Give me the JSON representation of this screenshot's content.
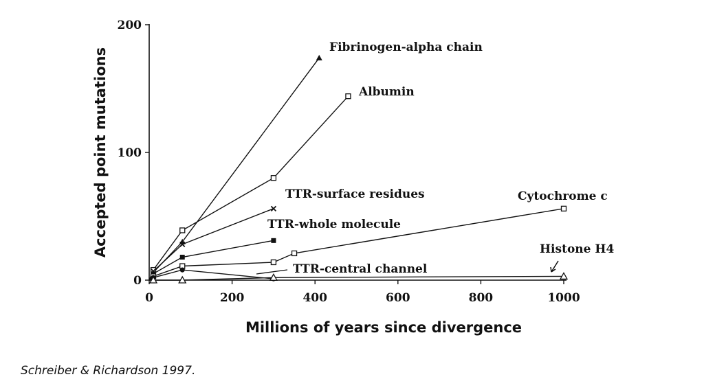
{
  "chart_data": {
    "type": "line",
    "xlabel": "Millions of years since divergence",
    "ylabel": "Accepted point mutations",
    "xlim": [
      0,
      1000
    ],
    "ylim": [
      0,
      200
    ],
    "xticks": [
      0,
      200,
      400,
      600,
      800,
      1000
    ],
    "yticks": [
      0,
      100,
      200
    ],
    "grid": false,
    "legend": "inline labels",
    "series": [
      {
        "name": "Fibrinogen-alpha chain",
        "marker": "triangle-filled",
        "x": [
          0,
          10,
          80,
          410
        ],
        "y": [
          0,
          6,
          30,
          174
        ]
      },
      {
        "name": "Albumin",
        "marker": "square-open",
        "x": [
          0,
          10,
          80,
          300,
          480
        ],
        "y": [
          0,
          8,
          39,
          80,
          144
        ]
      },
      {
        "name": "TTR-surface residues",
        "marker": "x",
        "x": [
          0,
          10,
          80,
          300
        ],
        "y": [
          0,
          7,
          28,
          56
        ]
      },
      {
        "name": "TTR-whole molecule",
        "marker": "square-filled",
        "x": [
          0,
          10,
          80,
          300
        ],
        "y": [
          0,
          5,
          18,
          31
        ]
      },
      {
        "name": "Cytochrome c",
        "marker": "square-open",
        "x": [
          0,
          10,
          80,
          300,
          350,
          1000
        ],
        "y": [
          0,
          3,
          11,
          14,
          21,
          56
        ]
      },
      {
        "name": "TTR-central channel",
        "marker": "circle-filled",
        "x": [
          0,
          10,
          80,
          300
        ],
        "y": [
          0,
          2,
          8,
          1
        ]
      },
      {
        "name": "Histone H4",
        "marker": "triangle-open",
        "x": [
          0,
          10,
          80,
          300,
          1000
        ],
        "y": [
          0,
          0,
          0,
          2,
          3
        ]
      }
    ]
  },
  "caption": "Schreiber & Richardson 1997."
}
